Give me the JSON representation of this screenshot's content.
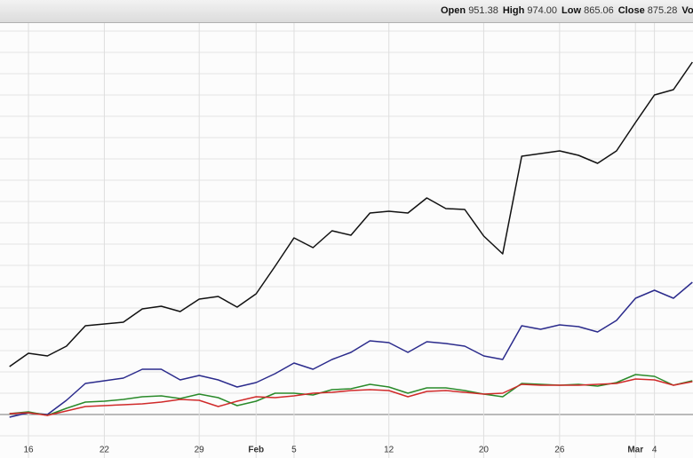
{
  "header": {
    "items": [
      {
        "label": "Open",
        "value": "951.38"
      },
      {
        "label": "High",
        "value": "974.00"
      },
      {
        "label": "Low",
        "value": "865.06"
      },
      {
        "label": "Close",
        "value": "875.28"
      },
      {
        "label": "Volum"
      }
    ]
  },
  "chart_data": {
    "type": "line",
    "categories": [
      null,
      "16",
      null,
      null,
      null,
      "22",
      null,
      null,
      null,
      null,
      "29",
      null,
      null,
      "Feb",
      null,
      "5",
      null,
      null,
      null,
      null,
      "12",
      null,
      null,
      null,
      null,
      "20",
      null,
      null,
      null,
      "26",
      null,
      null,
      null,
      "Mar",
      "4",
      null,
      null
    ],
    "series": [
      {
        "color": "#111111",
        "values": [
          13.5,
          17.25,
          16.5,
          19.25,
          25,
          25.5,
          26,
          29.75,
          30.5,
          29,
          32.5,
          33.25,
          30.25,
          34,
          41.75,
          49.75,
          47,
          51.75,
          50.5,
          56.75,
          57.25,
          56.75,
          61,
          58,
          57.75,
          50.25,
          45.25,
          72.75,
          73.5,
          74.25,
          73,
          70.75,
          74.25,
          82.25,
          90,
          91.5,
          99.25
        ]
      },
      {
        "color": "#2b2b8c",
        "values": [
          -0.75,
          0.5,
          0,
          4,
          8.75,
          9.5,
          10.25,
          12.75,
          12.75,
          9.75,
          11,
          9.75,
          7.75,
          9,
          11.5,
          14.5,
          12.75,
          15.5,
          17.5,
          20.75,
          20.25,
          17.5,
          20.5,
          20,
          19.25,
          16.5,
          15.5,
          25,
          24,
          25.25,
          24.75,
          23.25,
          26.5,
          32.75,
          35,
          32.75,
          37.25
        ]
      },
      {
        "color": "#2a8a2a",
        "values": [
          0.25,
          0.75,
          -0.25,
          1.75,
          3.5,
          3.75,
          4.25,
          5,
          5.25,
          4.5,
          5.75,
          4.75,
          2.5,
          3.75,
          6,
          6,
          5.5,
          7,
          7.25,
          8.5,
          7.75,
          6,
          7.5,
          7.5,
          6.75,
          5.75,
          5,
          8.75,
          8.5,
          8.25,
          8.5,
          8,
          9,
          11.25,
          10.75,
          8.25,
          9.5
        ]
      },
      {
        "color": "#d02a2a",
        "values": [
          0.25,
          0.5,
          -0.25,
          1,
          2.25,
          2.5,
          2.75,
          3,
          3.5,
          4.25,
          4,
          2.25,
          3.75,
          5,
          4.75,
          5.25,
          6,
          6.25,
          6.75,
          7,
          6.75,
          5,
          6.5,
          6.75,
          6.25,
          5.75,
          6,
          8.5,
          8.25,
          8.25,
          8.25,
          8.5,
          8.75,
          10,
          9.75,
          8.25,
          9.25
        ]
      }
    ],
    "ylim": [
      -12.25,
      110.5
    ],
    "yticks": [
      -6,
      0,
      6,
      12,
      18,
      24,
      30,
      36,
      42,
      48,
      54,
      60,
      66,
      72,
      78,
      84,
      90,
      96,
      102,
      108
    ],
    "grid": true
  }
}
